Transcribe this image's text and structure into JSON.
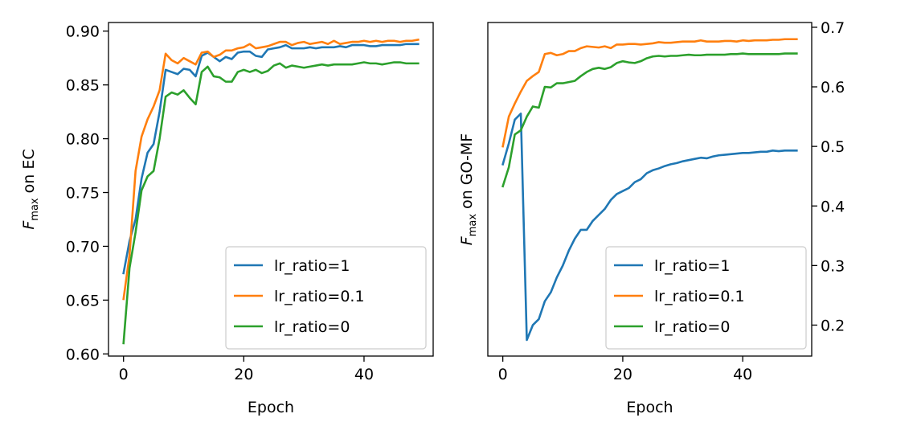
{
  "chart_data": [
    {
      "type": "line",
      "xlabel": "Epoch",
      "ylabel_main": "F",
      "ylabel_sub": "max",
      "ylabel_rest": " on EC",
      "xlim": [
        -2.5,
        51.5
      ],
      "ylim": [
        0.598,
        0.908
      ],
      "xticks": [
        0,
        20,
        40
      ],
      "yticks": [
        0.6,
        0.65,
        0.7,
        0.75,
        0.8,
        0.85,
        0.9
      ],
      "ytick_labels": [
        "0.60",
        "0.65",
        "0.70",
        "0.75",
        "0.80",
        "0.85",
        "0.90"
      ],
      "ytick_side": "left",
      "legend_position": "lower-right",
      "series": [
        {
          "name": "lr_ratio=1",
          "color": "#1f77b4",
          "values": [
            0.675,
            0.705,
            0.725,
            0.763,
            0.787,
            0.795,
            0.825,
            0.864,
            0.862,
            0.86,
            0.865,
            0.864,
            0.858,
            0.877,
            0.88,
            0.876,
            0.872,
            0.876,
            0.874,
            0.88,
            0.881,
            0.881,
            0.877,
            0.876,
            0.883,
            0.884,
            0.885,
            0.887,
            0.884,
            0.884,
            0.884,
            0.885,
            0.884,
            0.885,
            0.885,
            0.885,
            0.886,
            0.885,
            0.887,
            0.887,
            0.887,
            0.886,
            0.886,
            0.887,
            0.887,
            0.887,
            0.887,
            0.888,
            0.888,
            0.888
          ]
        },
        {
          "name": "lr_ratio=0.1",
          "color": "#ff7f0e",
          "values": [
            0.651,
            0.692,
            0.77,
            0.802,
            0.818,
            0.83,
            0.845,
            0.879,
            0.873,
            0.87,
            0.875,
            0.872,
            0.869,
            0.88,
            0.881,
            0.876,
            0.878,
            0.882,
            0.882,
            0.884,
            0.885,
            0.888,
            0.884,
            0.885,
            0.886,
            0.888,
            0.89,
            0.89,
            0.887,
            0.889,
            0.89,
            0.888,
            0.889,
            0.89,
            0.888,
            0.891,
            0.888,
            0.889,
            0.89,
            0.89,
            0.891,
            0.89,
            0.891,
            0.89,
            0.891,
            0.891,
            0.89,
            0.891,
            0.891,
            0.892
          ]
        },
        {
          "name": "lr_ratio=0",
          "color": "#2ca02c",
          "values": [
            0.61,
            0.68,
            0.713,
            0.752,
            0.765,
            0.77,
            0.8,
            0.839,
            0.843,
            0.841,
            0.845,
            0.838,
            0.832,
            0.862,
            0.867,
            0.858,
            0.857,
            0.853,
            0.853,
            0.862,
            0.864,
            0.862,
            0.864,
            0.861,
            0.863,
            0.868,
            0.87,
            0.866,
            0.868,
            0.867,
            0.866,
            0.867,
            0.868,
            0.869,
            0.868,
            0.869,
            0.869,
            0.869,
            0.869,
            0.87,
            0.871,
            0.87,
            0.87,
            0.869,
            0.87,
            0.871,
            0.871,
            0.87,
            0.87,
            0.87
          ]
        }
      ]
    },
    {
      "type": "line",
      "xlabel": "Epoch",
      "ylabel_main": "F",
      "ylabel_sub": "max",
      "ylabel_rest": " on GO-MF",
      "xlim": [
        -2.5,
        51.5
      ],
      "ylim": [
        0.148,
        0.708
      ],
      "xticks": [
        0,
        20,
        40
      ],
      "yticks": [
        0.2,
        0.3,
        0.4,
        0.5,
        0.6,
        0.7
      ],
      "ytick_labels": [
        "0.2",
        "0.3",
        "0.4",
        "0.5",
        "0.6",
        "0.7"
      ],
      "ytick_side": "right",
      "legend_position": "lower-right",
      "series": [
        {
          "name": "lr_ratio=1",
          "color": "#1f77b4",
          "values": [
            0.47,
            0.505,
            0.545,
            0.555,
            0.175,
            0.2,
            0.21,
            0.24,
            0.255,
            0.28,
            0.3,
            0.325,
            0.345,
            0.36,
            0.36,
            0.375,
            0.385,
            0.395,
            0.41,
            0.42,
            0.425,
            0.43,
            0.44,
            0.445,
            0.455,
            0.46,
            0.463,
            0.467,
            0.47,
            0.472,
            0.475,
            0.477,
            0.479,
            0.481,
            0.48,
            0.483,
            0.485,
            0.486,
            0.487,
            0.488,
            0.489,
            0.489,
            0.49,
            0.491,
            0.491,
            0.493,
            0.492,
            0.493,
            0.493,
            0.493
          ]
        },
        {
          "name": "lr_ratio=0.1",
          "color": "#ff7f0e",
          "values": [
            0.5,
            0.55,
            0.572,
            0.592,
            0.61,
            0.618,
            0.625,
            0.655,
            0.657,
            0.653,
            0.655,
            0.66,
            0.66,
            0.665,
            0.668,
            0.667,
            0.666,
            0.668,
            0.665,
            0.671,
            0.671,
            0.672,
            0.672,
            0.671,
            0.672,
            0.673,
            0.675,
            0.674,
            0.674,
            0.675,
            0.676,
            0.676,
            0.676,
            0.678,
            0.676,
            0.676,
            0.676,
            0.677,
            0.677,
            0.676,
            0.678,
            0.677,
            0.678,
            0.678,
            0.678,
            0.679,
            0.679,
            0.68,
            0.68,
            0.68
          ]
        },
        {
          "name": "lr_ratio=0",
          "color": "#2ca02c",
          "values": [
            0.433,
            0.465,
            0.52,
            0.527,
            0.55,
            0.567,
            0.565,
            0.6,
            0.599,
            0.606,
            0.606,
            0.608,
            0.61,
            0.618,
            0.625,
            0.63,
            0.632,
            0.63,
            0.633,
            0.64,
            0.643,
            0.641,
            0.64,
            0.643,
            0.648,
            0.651,
            0.652,
            0.651,
            0.652,
            0.652,
            0.653,
            0.654,
            0.653,
            0.653,
            0.654,
            0.654,
            0.654,
            0.654,
            0.655,
            0.655,
            0.656,
            0.655,
            0.655,
            0.655,
            0.655,
            0.655,
            0.655,
            0.656,
            0.656,
            0.656
          ]
        }
      ]
    }
  ]
}
